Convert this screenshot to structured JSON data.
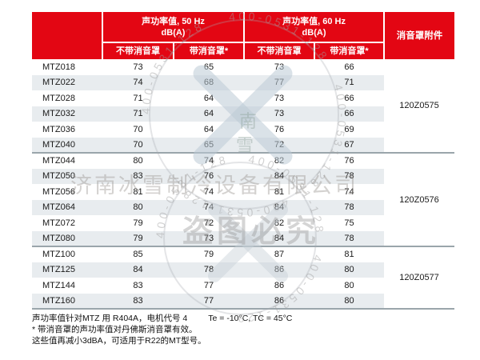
{
  "colors": {
    "header_red": "#e30613",
    "row_stripe": "#e8ecef",
    "group_separator": "#9aa5ab"
  },
  "table": {
    "header": {
      "group_50": {
        "title": "声功率值, 50 Hz",
        "unit": "dB(A)"
      },
      "group_60": {
        "title": "声功率值, 60 Hz",
        "unit": "dB(A)"
      },
      "sub_without": "不带消音罩",
      "sub_with": "带消音罩*",
      "accessory": "消音罩附件"
    },
    "groups": [
      {
        "accessory": "120Z0575",
        "rows": [
          {
            "model": "MTZ018",
            "values": [
              "73",
              "65",
              "73",
              "66"
            ]
          },
          {
            "model": "MTZ022",
            "values": [
              "74",
              "68",
              "77",
              "71"
            ]
          },
          {
            "model": "MTZ028",
            "values": [
              "71",
              "64",
              "73",
              "66"
            ]
          },
          {
            "model": "MTZ032",
            "values": [
              "71",
              "64",
              "73",
              "66"
            ]
          },
          {
            "model": "MTZ036",
            "values": [
              "70",
              "64",
              "76",
              "69"
            ]
          },
          {
            "model": "MTZ040",
            "values": [
              "70",
              "65",
              "72",
              "67"
            ]
          }
        ]
      },
      {
        "accessory": "120Z0576",
        "rows": [
          {
            "model": "MTZ044",
            "values": [
              "80",
              "74",
              "82",
              "76"
            ]
          },
          {
            "model": "MTZ050",
            "values": [
              "83",
              "76",
              "84",
              "78"
            ]
          },
          {
            "model": "MTZ056",
            "values": [
              "81",
              "74",
              "81",
              "74"
            ]
          },
          {
            "model": "MTZ064",
            "values": [
              "80",
              "74",
              "84",
              "78"
            ]
          },
          {
            "model": "MTZ072",
            "values": [
              "79",
              "72",
              "82",
              "75"
            ]
          },
          {
            "model": "MTZ080",
            "values": [
              "79",
              "73",
              "84",
              "78"
            ]
          }
        ]
      },
      {
        "accessory": "120Z0577",
        "rows": [
          {
            "model": "MTZ100",
            "values": [
              "85",
              "79",
              "87",
              "81"
            ]
          },
          {
            "model": "MTZ125",
            "values": [
              "84",
              "78",
              "86",
              "80"
            ]
          },
          {
            "model": "MTZ144",
            "values": [
              "83",
              "77",
              "86",
              "80"
            ]
          },
          {
            "model": "MTZ160",
            "values": [
              "83",
              "77",
              "86",
              "80"
            ]
          }
        ]
      }
    ]
  },
  "footnotes": {
    "line1_left": "声功率值针对MTZ 用 R404A，电机代号 4",
    "line1_right": "Te = -10°C, TC = 45°C",
    "line2": "* 带消音罩的声功率值对丹佛斯消音罩有效。",
    "line3": "这些值再减小3dBA，可适用于R22的MT型号。"
  },
  "watermarks": {
    "company": "济南冰雪制冷设备有限公司",
    "warning": "盗图必究",
    "phone_ring": "400-0531-128    400-0531-128    400-0531-128    400-0531-128    ",
    "logo_char_1": "南",
    "logo_char_2": "雪"
  }
}
